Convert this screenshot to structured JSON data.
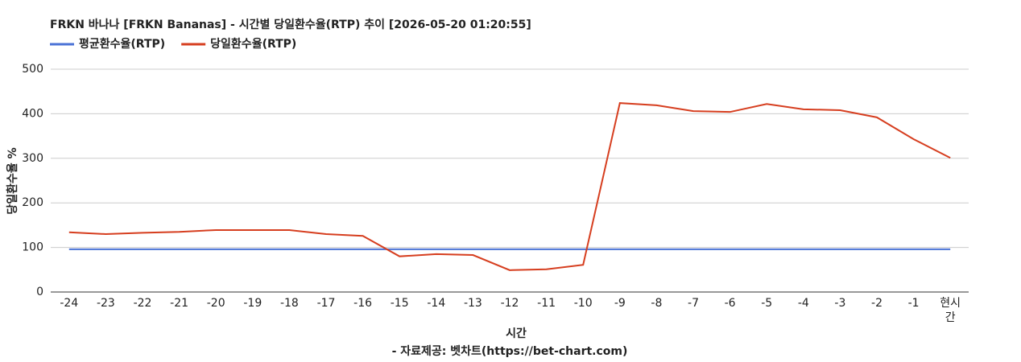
{
  "chart_data": {
    "type": "line",
    "title": "FRKN 바나나 [FRKN Bananas] - 시간별 당일환수율(RTP) 추이 [2026-05-20 01:20:55]",
    "x_label": "시간",
    "y_label": "당일환수율 %",
    "source": "- 자료제공: 벳차트(https://bet-chart.com)",
    "categories": [
      "-24",
      "-23",
      "-22",
      "-21",
      "-20",
      "-19",
      "-18",
      "-17",
      "-16",
      "-15",
      "-14",
      "-13",
      "-12",
      "-11",
      "-10",
      "-9",
      "-8",
      "-7",
      "-6",
      "-5",
      "-4",
      "-3",
      "-2",
      "-1",
      "현시간"
    ],
    "series": [
      {
        "name": "평균환수율(RTP)",
        "color": "#4a72d6",
        "values": [
          96,
          96,
          96,
          96,
          96,
          96,
          96,
          96,
          96,
          96,
          96,
          96,
          96,
          96,
          96,
          96,
          96,
          96,
          96,
          96,
          96,
          96,
          96,
          96,
          96
        ]
      },
      {
        "name": "당일환수율(RTP)",
        "color": "#d63e1f",
        "values": [
          134,
          130,
          133,
          135,
          139,
          139,
          139,
          130,
          126,
          80,
          85,
          83,
          49,
          51,
          61,
          424,
          419,
          406,
          404,
          422,
          410,
          408,
          392,
          343,
          301
        ]
      }
    ],
    "ylim": [
      0,
      500
    ],
    "yticks": [
      0,
      100,
      200,
      300,
      400,
      500
    ],
    "grid": true,
    "legend": "top-left"
  }
}
